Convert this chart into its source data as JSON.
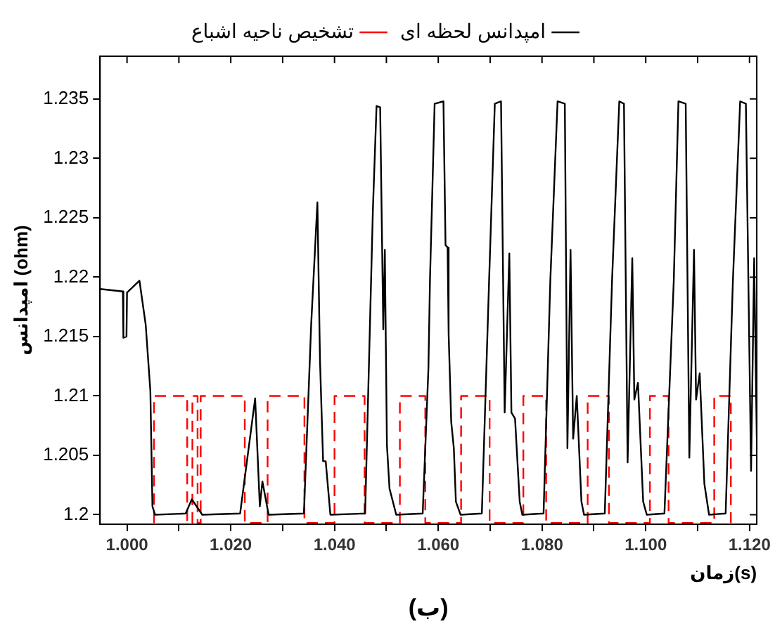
{
  "chart_data": {
    "type": "line",
    "xlabel": "زمان(s)",
    "ylabel": "امپدانس (ohm)",
    "annotations": [
      "(ب)"
    ],
    "xlim": [
      0.9948,
      1.1214
    ],
    "ylim": [
      1.1992,
      1.2386
    ],
    "xticks": [
      {
        "value": 1.0,
        "label": "1.000"
      },
      {
        "value": 1.01,
        "label": null
      },
      {
        "value": 1.02,
        "label": "1.020"
      },
      {
        "value": 1.03,
        "label": null
      },
      {
        "value": 1.04,
        "label": "1.040"
      },
      {
        "value": 1.05,
        "label": null
      },
      {
        "value": 1.06,
        "label": "1.060"
      },
      {
        "value": 1.07,
        "label": null
      },
      {
        "value": 1.08,
        "label": "1.080"
      },
      {
        "value": 1.09,
        "label": null
      },
      {
        "value": 1.1,
        "label": "1.100"
      },
      {
        "value": 1.11,
        "label": null
      },
      {
        "value": 1.12,
        "label": "1.120"
      }
    ],
    "yticks": [
      1.2,
      1.205,
      1.21,
      1.215,
      1.22,
      1.225,
      1.23,
      1.235
    ],
    "grid": false,
    "legend": "top",
    "marker": "none",
    "series": [
      {
        "name": "امپدانس لحظه ای",
        "color": "#000000",
        "line_style": "solid",
        "x": [
          0.9948,
          0.9992,
          0.9993,
          0.9999,
          1.0,
          1.0024,
          1.0036,
          1.0045,
          1.0049,
          1.0054,
          1.0113,
          1.0125,
          1.0145,
          1.0218,
          1.0247,
          1.0256,
          1.0261,
          1.0273,
          1.0341,
          1.0355,
          1.0367,
          1.0372,
          1.0378,
          1.0383,
          1.0392,
          1.0459,
          1.0474,
          1.0481,
          1.0488,
          1.0494,
          1.0497,
          1.0501,
          1.0506,
          1.0519,
          1.057,
          1.0581,
          1.0584,
          1.0593,
          1.061,
          1.0614,
          1.0618,
          1.062,
          1.0625,
          1.063,
          1.0634,
          1.0643,
          1.0684,
          1.0698,
          1.0709,
          1.0721,
          1.0728,
          1.0737,
          1.0741,
          1.0748,
          1.0757,
          1.0762,
          1.0803,
          1.0816,
          1.083,
          1.0844,
          1.0849,
          1.0855,
          1.086,
          1.0867,
          1.0876,
          1.0881,
          1.0921,
          1.0935,
          1.0949,
          1.0958,
          1.0965,
          1.0974,
          1.0978,
          1.0985,
          1.0995,
          1.1002,
          1.1036,
          1.1054,
          1.1063,
          1.1077,
          1.1084,
          1.1093,
          1.1097,
          1.1104,
          1.1113,
          1.1122,
          1.1154,
          1.1168,
          1.1182,
          1.1193,
          1.1203,
          1.1209,
          1.1214
        ],
        "values": [
          1.219,
          1.2188,
          1.2149,
          1.215,
          1.2187,
          1.2197,
          1.216,
          1.2104,
          1.2007,
          1.2,
          1.2001,
          1.2013,
          1.2,
          1.2001,
          1.2098,
          1.2007,
          1.2028,
          1.2,
          1.2001,
          1.216,
          1.2263,
          1.213,
          1.2045,
          1.2045,
          1.2,
          1.2001,
          1.2257,
          1.2344,
          1.2343,
          1.2156,
          1.2223,
          1.2059,
          1.2022,
          1.2,
          1.2001,
          1.2123,
          1.2197,
          1.2346,
          1.2348,
          1.2227,
          1.2225,
          1.2152,
          1.2078,
          1.2056,
          1.2011,
          1.2,
          1.2001,
          1.2197,
          1.2346,
          1.2348,
          1.2086,
          1.222,
          1.2086,
          1.2081,
          1.2011,
          1.2,
          1.2001,
          1.2197,
          1.2348,
          1.2346,
          1.2056,
          1.2223,
          1.2064,
          1.21,
          1.2011,
          1.2,
          1.2001,
          1.2197,
          1.2348,
          1.2346,
          1.2044,
          1.2216,
          1.2097,
          1.2111,
          1.2011,
          1.2,
          1.2001,
          1.2197,
          1.2348,
          1.2346,
          1.2048,
          1.2223,
          1.2097,
          1.2119,
          1.2026,
          1.2,
          1.2001,
          1.2197,
          1.2348,
          1.2346,
          1.2037,
          1.2216,
          1.2064
        ]
      },
      {
        "name": "تشخیص ناحیه اشباع",
        "color": "#ff0000",
        "line_style": "dashed",
        "x": [
          1.0052,
          1.0052,
          1.0116,
          1.0116,
          1.0126,
          1.0126,
          1.0136,
          1.0136,
          1.0142,
          1.0142,
          1.0227,
          1.0227,
          1.0271,
          1.0271,
          1.0342,
          1.0342,
          1.04,
          1.04,
          1.0458,
          1.0458,
          1.0526,
          1.0526,
          1.0575,
          1.0575,
          1.0644,
          1.0644,
          1.0699,
          1.0699,
          1.0764,
          1.0764,
          1.0808,
          1.0808,
          1.0888,
          1.0888,
          1.0929,
          1.0929,
          1.1008,
          1.1008,
          1.1044,
          1.1044,
          1.1132,
          1.1132,
          1.1164,
          1.1164
        ],
        "values": [
          1.1993,
          1.21,
          1.21,
          1.1993,
          1.1993,
          1.21,
          1.21,
          1.1993,
          1.1993,
          1.21,
          1.21,
          1.1993,
          1.1993,
          1.21,
          1.21,
          1.1993,
          1.1993,
          1.21,
          1.21,
          1.1993,
          1.1993,
          1.21,
          1.21,
          1.1993,
          1.1993,
          1.21,
          1.21,
          1.1993,
          1.1993,
          1.21,
          1.21,
          1.1993,
          1.1993,
          1.21,
          1.21,
          1.1993,
          1.1993,
          1.21,
          1.21,
          1.1993,
          1.1993,
          1.21,
          1.21,
          1.1993
        ]
      }
    ]
  }
}
